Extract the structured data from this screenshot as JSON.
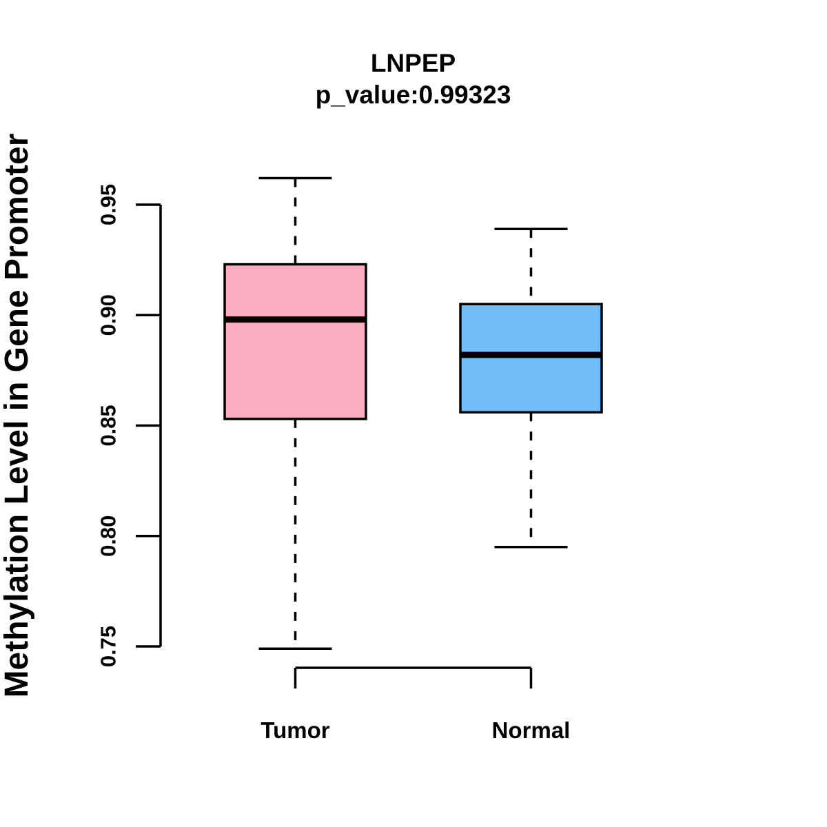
{
  "title": {
    "line1": "LNPEP",
    "line2": "p_value:0.99323"
  },
  "y_axis_label": "Methylation Level in Gene Promoter",
  "colors": {
    "background": "#FFFFFF",
    "stroke": "#000000",
    "tumor_fill": "#FAACC0",
    "normal_fill": "#71BDF7"
  },
  "chart_data": {
    "type": "boxplot",
    "title": "LNPEP",
    "subtitle": "p_value:0.99323",
    "ylabel": "Methylation Level in Gene Promoter",
    "xlabel": "",
    "grid": false,
    "legend": false,
    "ylim": [
      0.74,
      0.97
    ],
    "yticks": [
      0.75,
      0.8,
      0.85,
      0.9,
      0.95
    ],
    "ytick_labels": [
      "0.75",
      "0.80",
      "0.85",
      "0.90",
      "0.95"
    ],
    "categories": [
      "Tumor",
      "Normal"
    ],
    "series": [
      {
        "name": "Tumor",
        "fill": "#FAACC0",
        "whisker_low": 0.749,
        "q1": 0.853,
        "median": 0.898,
        "q3": 0.923,
        "whisker_high": 0.962
      },
      {
        "name": "Normal",
        "fill": "#71BDF7",
        "whisker_low": 0.795,
        "q1": 0.856,
        "median": 0.882,
        "q3": 0.905,
        "whisker_high": 0.939
      }
    ]
  }
}
